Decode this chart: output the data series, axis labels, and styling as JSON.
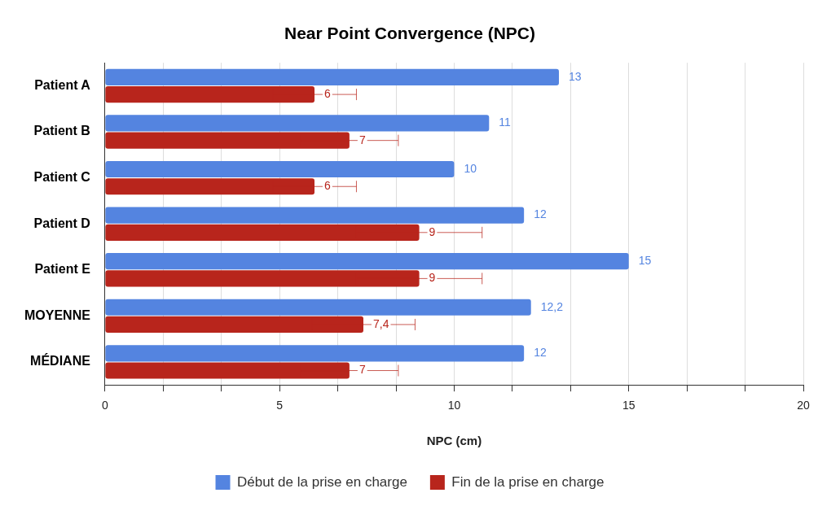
{
  "chart_data": {
    "type": "bar",
    "orientation": "horizontal",
    "title": "Near Point Convergence (NPC)",
    "xlabel": "NPC (cm)",
    "categories": [
      "Patient A",
      "Patient B",
      "Patient C",
      "Patient D",
      "Patient E",
      "MOYENNE",
      "MÉDIANE"
    ],
    "series": [
      {
        "name": "Début de la prise en charge",
        "color": "#5484e0",
        "values": [
          13,
          11,
          10,
          12,
          15,
          12.2,
          12
        ],
        "value_labels": [
          "13",
          "11",
          "10",
          "12",
          "15",
          "12,2",
          "12"
        ]
      },
      {
        "name": "Fin de la prise en charge",
        "color": "#b8251c",
        "values": [
          6,
          7,
          6,
          9,
          9,
          7.4,
          7
        ],
        "value_labels": [
          "6",
          "7",
          "6",
          "9",
          "9",
          "7,4",
          "7"
        ],
        "errors": [
          1.2,
          1.4,
          1.2,
          1.8,
          1.8,
          1.48,
          1.4
        ]
      }
    ],
    "xlim": [
      0,
      20
    ],
    "xticks": [
      0,
      {
        "value": 1.667,
        "label": null
      },
      {
        "value": 3.333,
        "label": null
      },
      5,
      {
        "value": 6.667,
        "label": null
      },
      {
        "value": 8.333,
        "label": null
      },
      10,
      {
        "value": 11.667,
        "label": null
      },
      {
        "value": 13.333,
        "label": null
      },
      15,
      {
        "value": 16.667,
        "label": null
      },
      {
        "value": 18.333,
        "label": null
      },
      20
    ],
    "grid": "x",
    "legend": "bottom"
  }
}
